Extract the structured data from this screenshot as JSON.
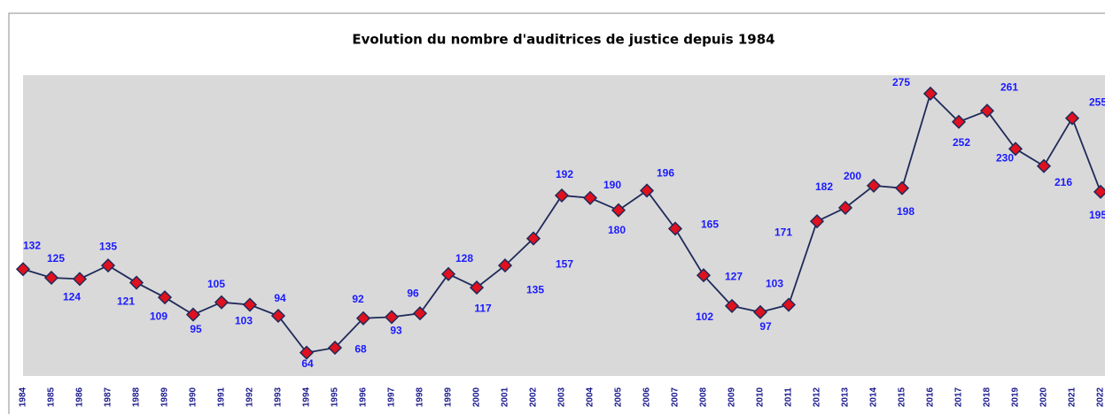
{
  "chart_data": {
    "type": "line",
    "title": "Evolution du nombre d'auditrices de justice depuis 1984",
    "categories": [
      "1984",
      "1985",
      "1986",
      "1987",
      "1988",
      "1989",
      "1990",
      "1991",
      "1992",
      "1993",
      "1994",
      "1995",
      "1996",
      "1997",
      "1998",
      "1999",
      "2000",
      "2001",
      "2002",
      "2003",
      "2004",
      "2005",
      "2006",
      "2007",
      "2008",
      "2009",
      "2010",
      "2011",
      "2012",
      "2013",
      "2014",
      "2015",
      "2016",
      "2017",
      "2018",
      "2019",
      "2020",
      "2021",
      "2022"
    ],
    "values": [
      132,
      125,
      124,
      135,
      121,
      109,
      95,
      105,
      103,
      94,
      64,
      68,
      92,
      93,
      96,
      128,
      117,
      135,
      157,
      192,
      190,
      180,
      196,
      165,
      127,
      102,
      97,
      103,
      171,
      182,
      200,
      198,
      275,
      252,
      261,
      230,
      216,
      255,
      195
    ],
    "color": "#1f2a5a",
    "marker_color": "#e0101e",
    "label_color": "#1a1aff",
    "ylim": [
      45,
      290
    ]
  }
}
